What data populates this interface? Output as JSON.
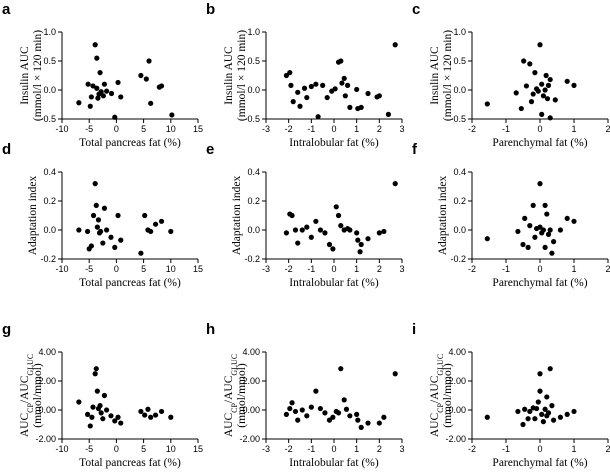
{
  "chart_data": [
    {
      "panel": "a",
      "type": "scatter",
      "xlabel": "Total pancreas fat (%)",
      "ylabel_lines": [
        "Insulin AUC",
        "(mmol/l × 120 min)"
      ],
      "xlim": [
        -10,
        15
      ],
      "ylim": [
        -0.5,
        1.0
      ],
      "xticks": [
        -10,
        -5,
        0,
        5,
        10,
        15
      ],
      "xtick_labels": [
        "-10",
        "-5",
        "0",
        "5",
        "10",
        "15"
      ],
      "yticks": [
        -0.5,
        0,
        0.5,
        1.0
      ],
      "ytick_labels": [
        "-0.5",
        "0.0",
        "0.5",
        "1.0"
      ],
      "points": [
        [
          -6.9,
          -0.22
        ],
        [
          -5.2,
          0.1
        ],
        [
          -4.8,
          -0.28
        ],
        [
          -4.6,
          -0.12
        ],
        [
          -4.3,
          0.07
        ],
        [
          -3.9,
          0.78
        ],
        [
          -3.6,
          0.55
        ],
        [
          -3.6,
          0.03
        ],
        [
          -3.4,
          -0.14
        ],
        [
          -3.2,
          -0.07
        ],
        [
          -3.0,
          0.3
        ],
        [
          -2.8,
          -0.03
        ],
        [
          -2.4,
          -0.1
        ],
        [
          -2.2,
          0.1
        ],
        [
          -1.8,
          -0.02
        ],
        [
          -0.9,
          -0.06
        ],
        [
          -0.3,
          -0.47
        ],
        [
          0.3,
          0.13
        ],
        [
          0.8,
          -0.12
        ],
        [
          4.5,
          0.25
        ],
        [
          5.5,
          0.19
        ],
        [
          6.0,
          0.5
        ],
        [
          6.3,
          -0.23
        ],
        [
          7.9,
          0.05
        ],
        [
          8.3,
          0.07
        ],
        [
          10.2,
          -0.43
        ]
      ]
    },
    {
      "panel": "b",
      "type": "scatter",
      "xlabel": "Intralobular fat (%)",
      "ylabel_lines": [
        "Insulin AUC",
        "(mmol/l × 120 min)"
      ],
      "xlim": [
        -3,
        3
      ],
      "ylim": [
        -0.5,
        1.0
      ],
      "xticks": [
        -3,
        -2,
        -1,
        0,
        1,
        2,
        3
      ],
      "xtick_labels": [
        "-3",
        "-2",
        "-1",
        "0",
        "1",
        "2",
        "3"
      ],
      "yticks": [
        -0.5,
        0,
        0.5,
        1.0
      ],
      "ytick_labels": [
        "-0.5",
        "0.0",
        "0.5",
        "1.0"
      ],
      "points": [
        [
          -2.1,
          0.25
        ],
        [
          -1.95,
          0.3
        ],
        [
          -1.9,
          0.08
        ],
        [
          -1.8,
          -0.2
        ],
        [
          -1.6,
          -0.04
        ],
        [
          -1.5,
          -0.28
        ],
        [
          -1.3,
          0.03
        ],
        [
          -1.2,
          -0.13
        ],
        [
          -1.0,
          0.06
        ],
        [
          -0.8,
          0.1
        ],
        [
          -0.7,
          -0.46
        ],
        [
          -0.5,
          0.08
        ],
        [
          -0.3,
          -0.13
        ],
        [
          -0.1,
          -0.02
        ],
        [
          0.05,
          0.02
        ],
        [
          0.2,
          0.48
        ],
        [
          0.3,
          0.5
        ],
        [
          0.35,
          0.12
        ],
        [
          0.45,
          0.2
        ],
        [
          0.5,
          -0.1
        ],
        [
          0.6,
          0.08
        ],
        [
          0.7,
          -0.3
        ],
        [
          1.0,
          0.01
        ],
        [
          1.05,
          -0.32
        ],
        [
          1.2,
          -0.3
        ],
        [
          1.5,
          -0.06
        ],
        [
          1.9,
          -0.12
        ],
        [
          2.0,
          -0.1
        ],
        [
          2.4,
          -0.42
        ],
        [
          2.7,
          0.78
        ]
      ]
    },
    {
      "panel": "c",
      "type": "scatter",
      "xlabel": "Parenchymal fat (%)",
      "ylabel_lines": [
        "Insulin AUC",
        "(mmol/l × 120 min)"
      ],
      "xlim": [
        -2,
        2
      ],
      "ylim": [
        -0.5,
        1.0
      ],
      "xticks": [
        -2,
        -1,
        0,
        1,
        2
      ],
      "xtick_labels": [
        "-2",
        "-1",
        "0",
        "1",
        "2"
      ],
      "yticks": [
        -0.5,
        0,
        0.5,
        1.0
      ],
      "ytick_labels": [
        "-0.5",
        "0.0",
        "0.5",
        "1.0"
      ],
      "points": [
        [
          -1.55,
          -0.24
        ],
        [
          -0.7,
          -0.05
        ],
        [
          -0.55,
          -0.32
        ],
        [
          -0.48,
          0.5
        ],
        [
          -0.4,
          0.07
        ],
        [
          -0.3,
          0.45
        ],
        [
          -0.25,
          -0.2
        ],
        [
          -0.2,
          -0.07
        ],
        [
          -0.15,
          0.3
        ],
        [
          -0.1,
          0.02
        ],
        [
          -0.05,
          -0.02
        ],
        [
          0.0,
          0.78
        ],
        [
          0.05,
          0.1
        ],
        [
          0.05,
          -0.42
        ],
        [
          0.1,
          -0.1
        ],
        [
          0.15,
          0.0
        ],
        [
          0.18,
          0.25
        ],
        [
          0.22,
          -0.15
        ],
        [
          0.25,
          0.08
        ],
        [
          0.3,
          -0.48
        ],
        [
          0.45,
          -0.17
        ],
        [
          0.8,
          0.15
        ],
        [
          1.0,
          0.08
        ],
        [
          0.3,
          0.18
        ]
      ]
    },
    {
      "panel": "d",
      "type": "scatter",
      "xlabel": "Total pancreas fat (%)",
      "ylabel_lines": [
        "Adaptation index"
      ],
      "xlim": [
        -10,
        15
      ],
      "ylim": [
        -0.2,
        0.4
      ],
      "xticks": [
        -10,
        -5,
        0,
        5,
        10,
        15
      ],
      "xtick_labels": [
        "-10",
        "-5",
        "0",
        "5",
        "10",
        "15"
      ],
      "yticks": [
        -0.2,
        0,
        0.2,
        0.4
      ],
      "ytick_labels": [
        "-0.2",
        "0.0",
        "0.2",
        "0.4"
      ],
      "points": [
        [
          -6.9,
          0.0
        ],
        [
          -5.3,
          -0.01
        ],
        [
          -5.0,
          -0.13
        ],
        [
          -4.6,
          -0.11
        ],
        [
          -4.2,
          0.1
        ],
        [
          -3.9,
          0.32
        ],
        [
          -3.7,
          0.17
        ],
        [
          -3.5,
          0.02
        ],
        [
          -3.3,
          0.07
        ],
        [
          -3.1,
          -0.02
        ],
        [
          -2.9,
          -0.01
        ],
        [
          -2.5,
          -0.09
        ],
        [
          -2.2,
          0.15
        ],
        [
          -1.8,
          0.0
        ],
        [
          -1.0,
          -0.05
        ],
        [
          -0.3,
          -0.12
        ],
        [
          0.3,
          0.1
        ],
        [
          0.8,
          -0.07
        ],
        [
          4.5,
          -0.16
        ],
        [
          5.2,
          0.1
        ],
        [
          5.8,
          0.0
        ],
        [
          6.3,
          -0.01
        ],
        [
          7.2,
          0.04
        ],
        [
          8.3,
          0.06
        ],
        [
          10.0,
          -0.01
        ]
      ]
    },
    {
      "panel": "e",
      "type": "scatter",
      "xlabel": "Intralobular fat (%)",
      "ylabel_lines": [
        "Adaptation index"
      ],
      "xlim": [
        -3,
        3
      ],
      "ylim": [
        -0.2,
        0.4
      ],
      "xticks": [
        -3,
        -2,
        -1,
        0,
        1,
        2,
        3
      ],
      "xtick_labels": [
        "-3",
        "-2",
        "-1",
        "0",
        "1",
        "2",
        "3"
      ],
      "yticks": [
        -0.2,
        0,
        0.2,
        0.4
      ],
      "ytick_labels": [
        "-0.2",
        "0.0",
        "0.2",
        "0.4"
      ],
      "points": [
        [
          -2.1,
          -0.02
        ],
        [
          -1.95,
          0.11
        ],
        [
          -1.85,
          0.1
        ],
        [
          -1.7,
          0.0
        ],
        [
          -1.6,
          -0.09
        ],
        [
          -1.4,
          0.0
        ],
        [
          -1.2,
          0.02
        ],
        [
          -1.0,
          -0.05
        ],
        [
          -0.8,
          0.06
        ],
        [
          -0.6,
          0.0
        ],
        [
          -0.4,
          -0.02
        ],
        [
          -0.2,
          -0.1
        ],
        [
          -0.05,
          -0.13
        ],
        [
          0.1,
          0.16
        ],
        [
          0.2,
          0.1
        ],
        [
          0.3,
          0.03
        ],
        [
          0.45,
          0.0
        ],
        [
          0.6,
          0.01
        ],
        [
          0.7,
          0.0
        ],
        [
          1.0,
          -0.02
        ],
        [
          1.05,
          -0.07
        ],
        [
          1.15,
          -0.15
        ],
        [
          1.2,
          -0.1
        ],
        [
          1.5,
          -0.06
        ],
        [
          2.0,
          -0.02
        ],
        [
          2.2,
          -0.01
        ],
        [
          2.7,
          0.32
        ]
      ]
    },
    {
      "panel": "f",
      "type": "scatter",
      "xlabel": "Parenchymal fat (%)",
      "ylabel_lines": [
        "Adaptation index"
      ],
      "xlim": [
        -2,
        2
      ],
      "ylim": [
        -0.2,
        0.4
      ],
      "xticks": [
        -2,
        -1,
        0,
        1,
        2
      ],
      "xtick_labels": [
        "-2",
        "-1",
        "0",
        "1",
        "2"
      ],
      "yticks": [
        -0.2,
        0,
        0.2,
        0.4
      ],
      "ytick_labels": [
        "-0.2",
        "0.0",
        "0.2",
        "0.4"
      ],
      "points": [
        [
          -1.55,
          -0.06
        ],
        [
          -0.65,
          -0.01
        ],
        [
          -0.5,
          -0.1
        ],
        [
          -0.45,
          0.08
        ],
        [
          -0.35,
          -0.12
        ],
        [
          -0.3,
          0.03
        ],
        [
          -0.2,
          0.17
        ],
        [
          -0.15,
          -0.05
        ],
        [
          -0.1,
          0.01
        ],
        [
          0.0,
          0.32
        ],
        [
          0.0,
          0.02
        ],
        [
          0.05,
          -0.02
        ],
        [
          0.1,
          0.0
        ],
        [
          0.15,
          -0.12
        ],
        [
          0.2,
          0.11
        ],
        [
          0.25,
          -0.03
        ],
        [
          0.3,
          0.0
        ],
        [
          0.35,
          -0.16
        ],
        [
          0.4,
          -0.08
        ],
        [
          0.6,
          0.0
        ],
        [
          0.8,
          0.08
        ],
        [
          1.0,
          0.06
        ],
        [
          0.15,
          0.17
        ]
      ]
    },
    {
      "panel": "g",
      "type": "scatter",
      "xlabel": "Total pancreas fat (%)",
      "ylabel_lines": [
        "AUC_CP/AUC_GLUC",
        "(mmol/mmol)"
      ],
      "xlim": [
        -10,
        15
      ],
      "ylim": [
        -2.0,
        4.0
      ],
      "xticks": [
        -10,
        -5,
        0,
        5,
        10,
        15
      ],
      "xtick_labels": [
        "-10",
        "-5",
        "0",
        "5",
        "10",
        "15"
      ],
      "yticks": [
        -2.0,
        0,
        2.0,
        4.0
      ],
      "ytick_labels": [
        "-2.00",
        "0.00",
        "2.00",
        "4.00"
      ],
      "points": [
        [
          -6.9,
          0.55
        ],
        [
          -5.3,
          -0.3
        ],
        [
          -4.8,
          -1.1
        ],
        [
          -4.5,
          -0.5
        ],
        [
          -4.3,
          0.2
        ],
        [
          -3.9,
          2.5
        ],
        [
          -3.7,
          2.85
        ],
        [
          -3.5,
          1.3
        ],
        [
          -3.3,
          0.1
        ],
        [
          -3.0,
          0.3
        ],
        [
          -2.8,
          -0.2
        ],
        [
          -2.5,
          -0.6
        ],
        [
          -2.2,
          1.0
        ],
        [
          -1.8,
          0.0
        ],
        [
          -1.0,
          -0.4
        ],
        [
          -0.3,
          -0.75
        ],
        [
          0.3,
          -0.5
        ],
        [
          0.8,
          -0.9
        ],
        [
          4.5,
          -0.1
        ],
        [
          5.2,
          -0.35
        ],
        [
          5.8,
          0.05
        ],
        [
          6.3,
          -0.5
        ],
        [
          7.2,
          -0.35
        ],
        [
          8.3,
          -0.1
        ],
        [
          10.0,
          -0.5
        ]
      ]
    },
    {
      "panel": "h",
      "type": "scatter",
      "xlabel": "Intralobular fat (%)",
      "ylabel_lines": [
        "AUC_CP/AUC_GLUC",
        "(mmol/mmol)"
      ],
      "xlim": [
        -3,
        3
      ],
      "ylim": [
        -2.0,
        4.0
      ],
      "xticks": [
        -3,
        -2,
        -1,
        0,
        1,
        2,
        3
      ],
      "xtick_labels": [
        "-3",
        "-2",
        "-1",
        "0",
        "1",
        "2",
        "3"
      ],
      "yticks": [
        -2.0,
        0,
        2.0,
        4.0
      ],
      "ytick_labels": [
        "-2.00",
        "0.00",
        "2.00",
        "4.00"
      ],
      "points": [
        [
          -2.1,
          -0.3
        ],
        [
          -1.95,
          0.1
        ],
        [
          -1.85,
          0.5
        ],
        [
          -1.7,
          -0.1
        ],
        [
          -1.6,
          -0.7
        ],
        [
          -1.4,
          0.0
        ],
        [
          -1.2,
          -0.4
        ],
        [
          -1.0,
          0.2
        ],
        [
          -0.8,
          1.3
        ],
        [
          -0.6,
          0.1
        ],
        [
          -0.4,
          -0.2
        ],
        [
          -0.2,
          -0.7
        ],
        [
          -0.05,
          -0.5
        ],
        [
          0.1,
          -0.1
        ],
        [
          0.2,
          -0.2
        ],
        [
          0.3,
          2.85
        ],
        [
          0.45,
          0.7
        ],
        [
          0.55,
          0.05
        ],
        [
          0.7,
          -0.4
        ],
        [
          1.0,
          -0.3
        ],
        [
          1.05,
          -0.7
        ],
        [
          1.2,
          -1.2
        ],
        [
          1.5,
          -0.9
        ],
        [
          2.0,
          -0.9
        ],
        [
          2.2,
          -0.5
        ],
        [
          2.7,
          2.5
        ]
      ]
    },
    {
      "panel": "i",
      "type": "scatter",
      "xlabel": "Parenchymal fat (%)",
      "ylabel_lines": [
        "AUC_CP/AUC_GLUC",
        "(mmol/mmol)"
      ],
      "xlim": [
        -2,
        2
      ],
      "ylim": [
        -2.0,
        4.0
      ],
      "xticks": [
        -2,
        -1,
        0,
        1,
        2
      ],
      "xtick_labels": [
        "-2",
        "-1",
        "0",
        "1",
        "2"
      ],
      "yticks": [
        -2.0,
        0,
        2.0,
        4.0
      ],
      "ytick_labels": [
        "-2.00",
        "0.00",
        "2.00",
        "4.00"
      ],
      "points": [
        [
          -1.55,
          -0.5
        ],
        [
          -0.65,
          -0.1
        ],
        [
          -0.5,
          -1.0
        ],
        [
          -0.45,
          0.05
        ],
        [
          -0.35,
          -0.6
        ],
        [
          -0.3,
          -0.1
        ],
        [
          -0.2,
          0.15
        ],
        [
          -0.15,
          -0.6
        ],
        [
          -0.1,
          0.1
        ],
        [
          0.0,
          2.5
        ],
        [
          0.0,
          1.3
        ],
        [
          0.05,
          -0.3
        ],
        [
          0.1,
          -0.8
        ],
        [
          0.15,
          0.05
        ],
        [
          0.2,
          0.9
        ],
        [
          0.25,
          -0.2
        ],
        [
          0.3,
          2.85
        ],
        [
          0.35,
          0.3
        ],
        [
          0.4,
          -0.7
        ],
        [
          0.6,
          -0.5
        ],
        [
          0.8,
          -0.3
        ],
        [
          1.0,
          -0.1
        ],
        [
          0.2,
          -0.4
        ],
        [
          -0.05,
          0.55
        ]
      ]
    }
  ]
}
